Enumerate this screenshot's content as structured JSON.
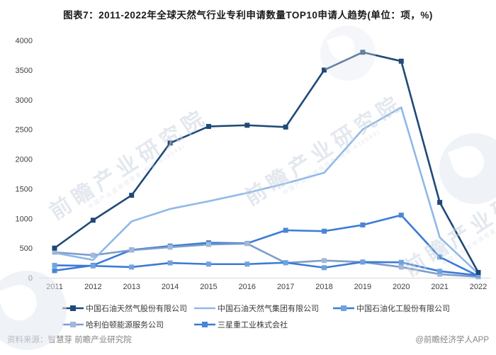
{
  "chart_data": {
    "type": "line",
    "title": "图表7：2011-2022年全球天然气行业专利申请数量TOP10申请人趋势(单位：项，%)",
    "x": [
      2011,
      2012,
      2013,
      2014,
      2015,
      2016,
      2017,
      2018,
      2019,
      2020,
      2021,
      2022
    ],
    "xlabel": "",
    "ylabel": "",
    "ylim": [
      0,
      4000
    ],
    "ytick_step": 500,
    "grid": false,
    "legend_position": "bottom",
    "series": [
      {
        "name": "中国石油天然气股份有限公司",
        "color": "#1f4977",
        "marker": "square",
        "marker_color": "#1f4977",
        "values": [
          500,
          970,
          1390,
          2270,
          2550,
          2570,
          2540,
          3500,
          3800,
          3650,
          1270,
          90
        ]
      },
      {
        "name": "中国石油天然气集团有限公司",
        "color": "#8fb8e8",
        "marker": "none",
        "marker_color": "#8fb8e8",
        "values": [
          420,
          300,
          950,
          1160,
          1290,
          1430,
          1590,
          1770,
          2500,
          2870,
          680,
          70
        ]
      },
      {
        "name": "中国石油化工股份有限公司",
        "color": "#3a7bd5",
        "marker": "square",
        "marker_color": "#6fa3de",
        "values": [
          210,
          200,
          180,
          250,
          230,
          230,
          255,
          170,
          265,
          260,
          110,
          40
        ]
      },
      {
        "name": "哈利伯顿能源服务公司",
        "color": "#7e9dcb",
        "marker": "square",
        "marker_color": "#a3b8d9",
        "values": [
          430,
          380,
          465,
          515,
          560,
          575,
          250,
          290,
          265,
          180,
          60,
          15
        ]
      },
      {
        "name": "三星重工业株式会社",
        "color": "#3a7bd5",
        "marker": "square",
        "marker_color": "#4a86d8",
        "values": [
          120,
          210,
          470,
          535,
          590,
          580,
          800,
          785,
          890,
          1055,
          350,
          30
        ]
      }
    ]
  },
  "watermark": {
    "text": "前瞻产业研究院",
    "subtext": "中国产业咨询领导者(股票:839599)"
  },
  "footer": {
    "source": "资料来源：智慧芽 前瞻产业研究院",
    "credit": "@前瞻经济学人APP"
  },
  "colors": {
    "axis": "#d9d9d9",
    "tick_text": "#404040"
  }
}
